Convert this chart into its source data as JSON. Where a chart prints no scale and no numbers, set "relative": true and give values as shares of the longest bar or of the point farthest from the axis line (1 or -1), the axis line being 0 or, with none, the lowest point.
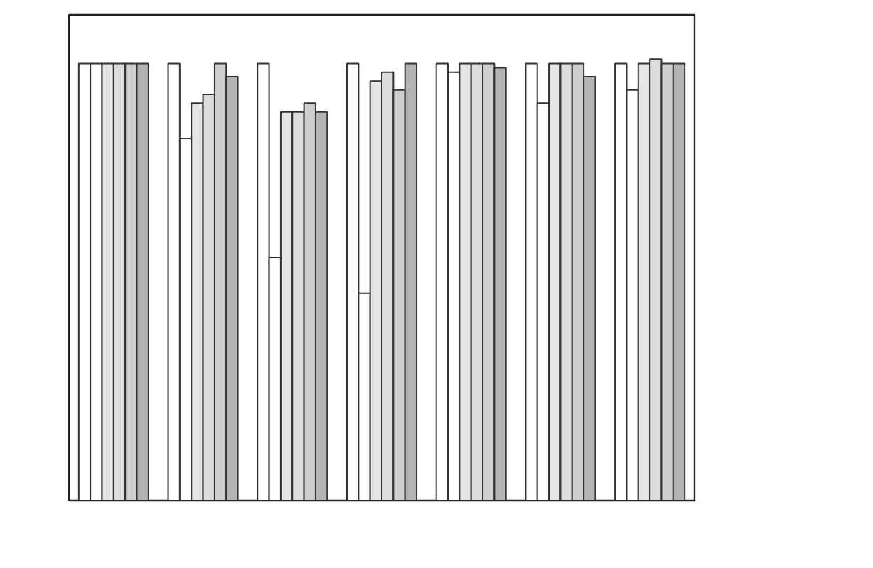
{
  "chart_data": {
    "type": "bar",
    "relative": true,
    "categories": [
      null,
      null,
      null,
      null,
      null,
      null,
      null
    ],
    "series": [
      {
        "color": "#ffffff",
        "values": [
          0.99,
          0.99,
          0.99,
          0.99,
          0.99,
          0.99,
          0.99
        ]
      },
      {
        "color": "#ffffff",
        "values": [
          0.99,
          0.82,
          0.55,
          0.47,
          0.97,
          0.9,
          0.93
        ]
      },
      {
        "color": "#e6e6e6",
        "values": [
          0.99,
          0.9,
          0.88,
          0.95,
          0.99,
          0.99,
          0.99
        ]
      },
      {
        "color": "#dcdcdc",
        "values": [
          0.99,
          0.92,
          0.88,
          0.97,
          0.99,
          0.99,
          1
        ]
      },
      {
        "color": "#cfcfcf",
        "values": [
          0.99,
          0.99,
          0.9,
          0.93,
          0.99,
          0.99,
          0.99
        ]
      },
      {
        "color": "#b4b4b4",
        "values": [
          0.99,
          0.96,
          0.88,
          0.99,
          0.98,
          0.96,
          0.99
        ]
      }
    ]
  }
}
